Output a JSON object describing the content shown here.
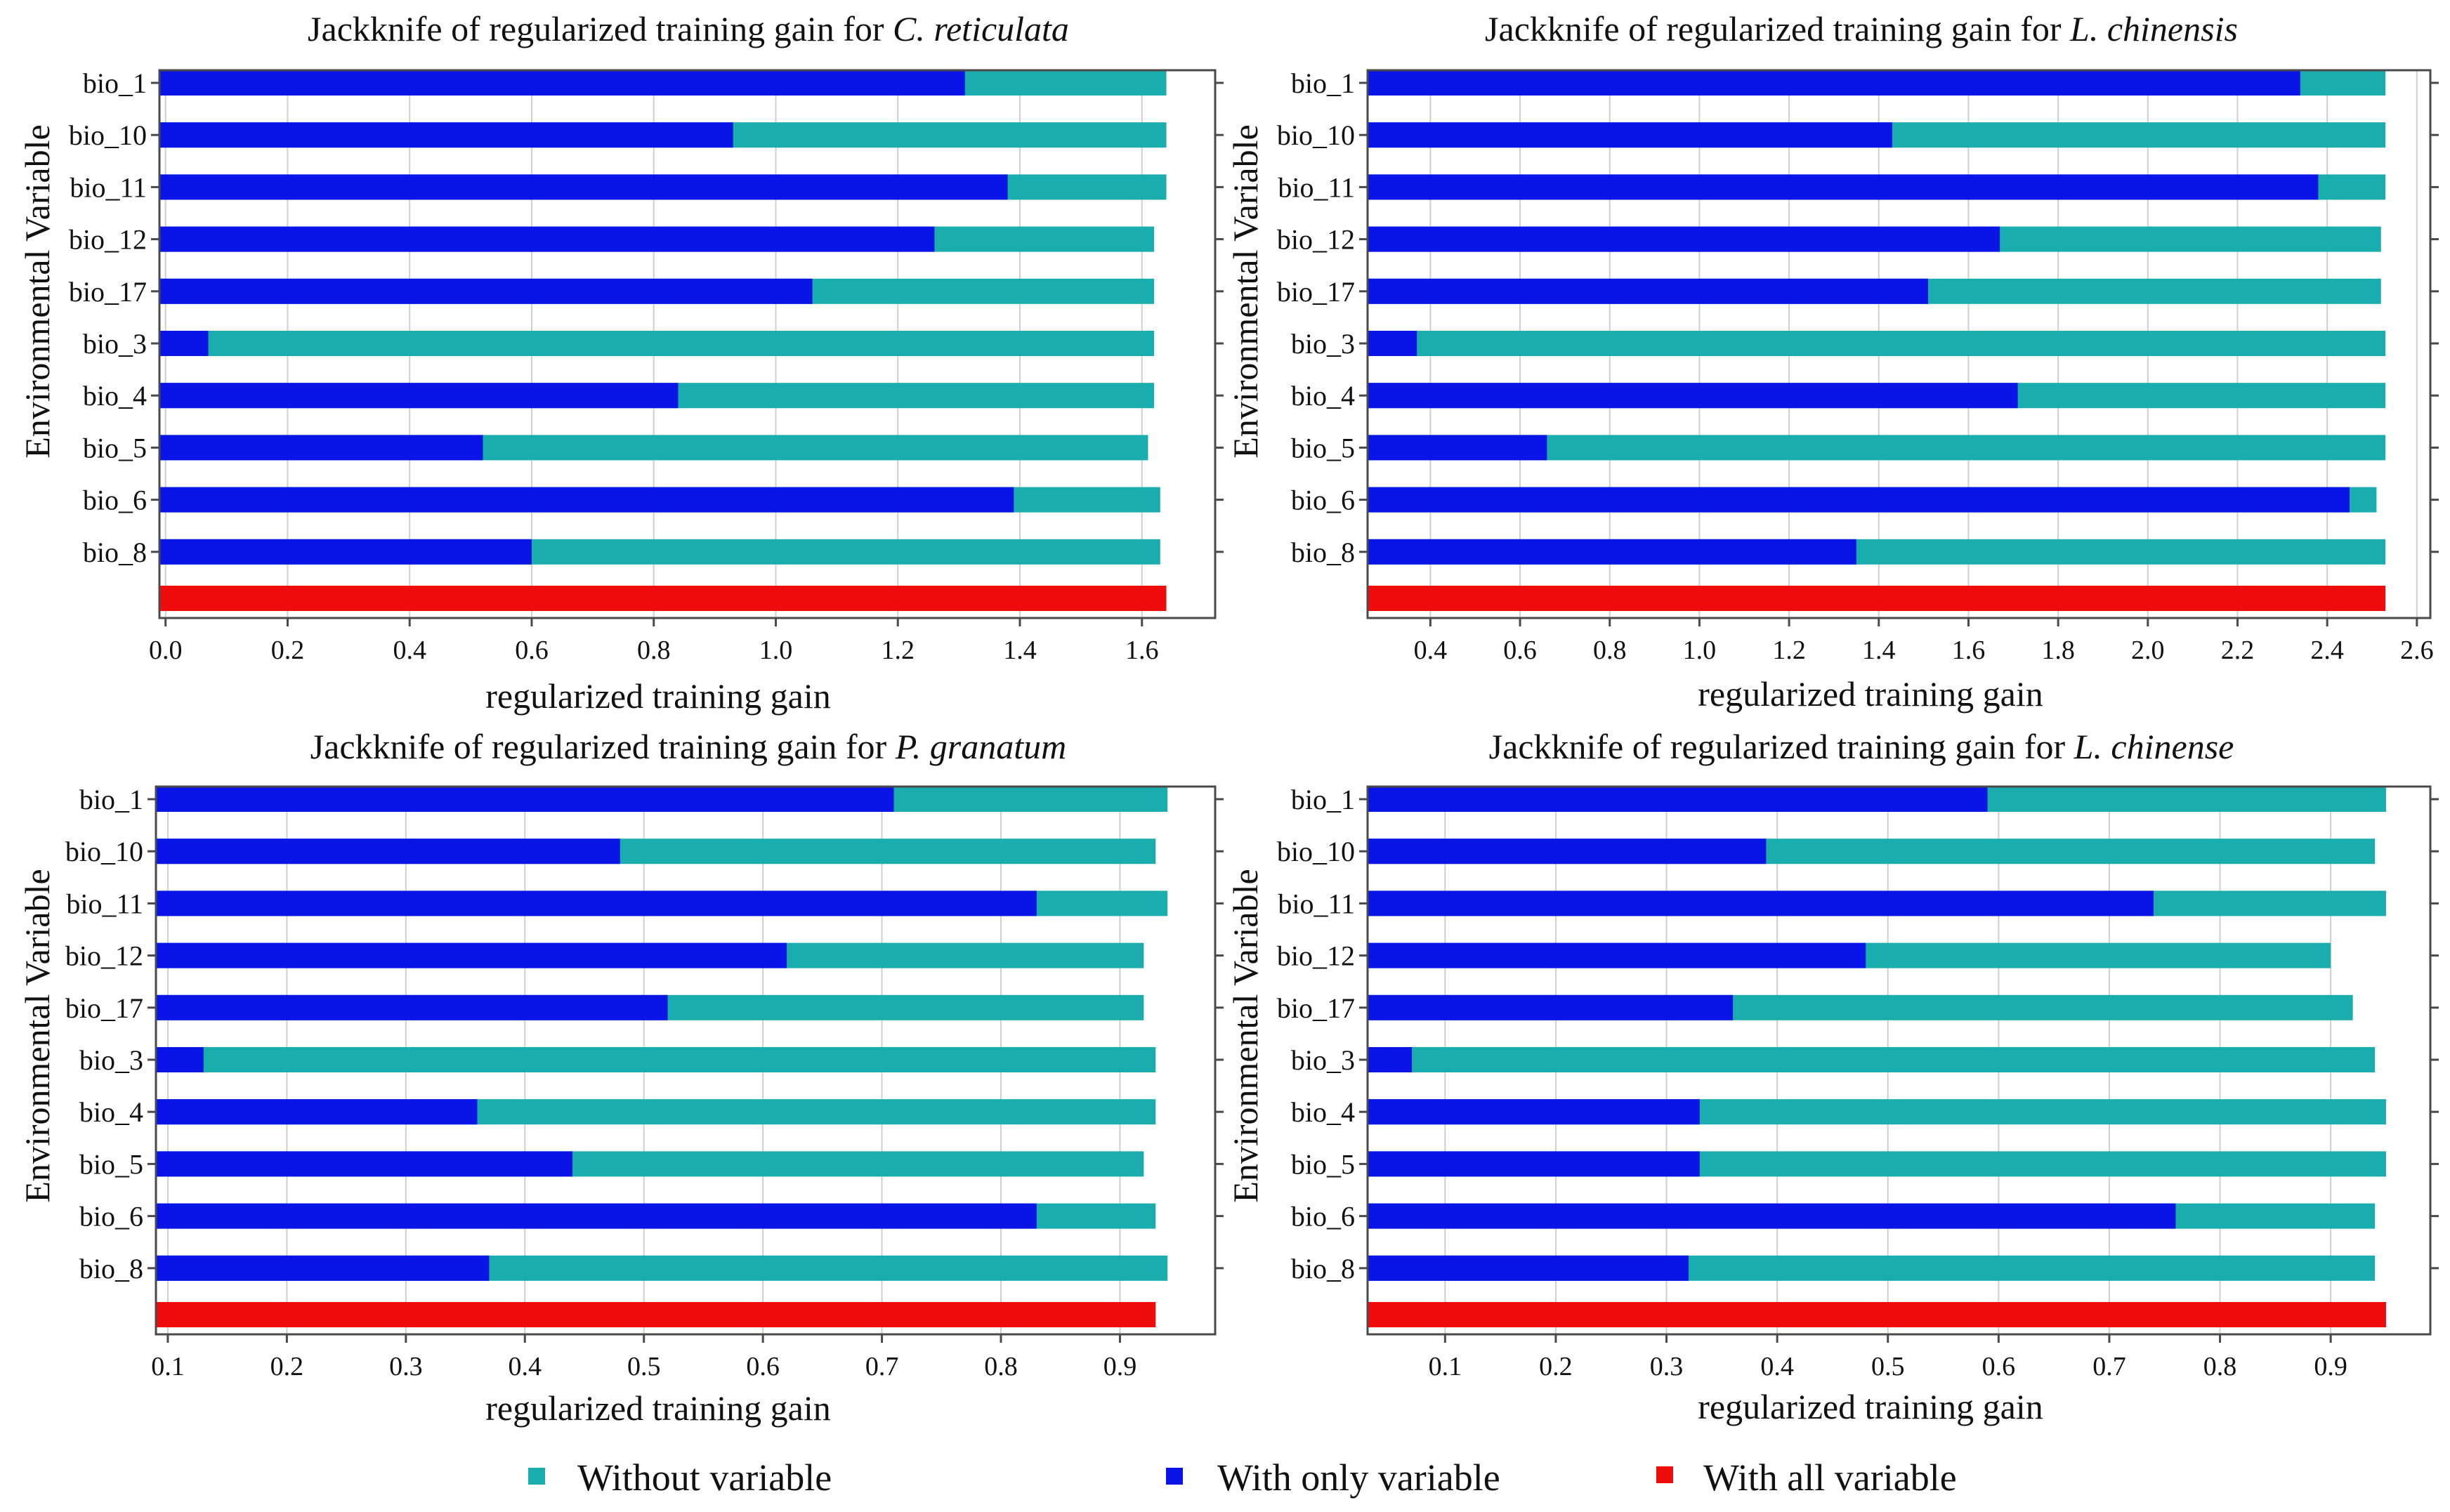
{
  "chart_data": [
    {
      "type": "bar",
      "orientation": "horizontal",
      "title": "Jackknife of regularized training gain for",
      "species": "C. reticulata",
      "xlabel": "regularized training gain",
      "ylabel": "Environmental Variable",
      "xlim": [
        -0.01,
        1.72
      ],
      "xticks": [
        0.0,
        0.2,
        0.4,
        0.6,
        0.8,
        1.0,
        1.2,
        1.4,
        1.6
      ],
      "xtick_labels": [
        "0.0",
        "0.2",
        "0.4",
        "0.6",
        "0.8",
        "1.0",
        "1.2",
        "1.4",
        "1.6"
      ],
      "grid": true,
      "categories": [
        "bio_1",
        "bio_10",
        "bio_11",
        "bio_12",
        "bio_17",
        "bio_3",
        "bio_4",
        "bio_5",
        "bio_6",
        "bio_8"
      ],
      "series": [
        {
          "name": "Without variable",
          "values": [
            1.64,
            1.64,
            1.64,
            1.62,
            1.62,
            1.62,
            1.62,
            1.61,
            1.63,
            1.63
          ]
        },
        {
          "name": "With only variable",
          "values": [
            1.31,
            0.93,
            1.38,
            1.26,
            1.06,
            0.07,
            0.84,
            0.52,
            1.39,
            0.6
          ]
        }
      ],
      "all_variables": 1.64
    },
    {
      "type": "bar",
      "orientation": "horizontal",
      "title": "Jackknife of regularized training gain for",
      "species": "L. chinensis",
      "xlabel": "regularized training gain",
      "ylabel": "Environmental Variable",
      "xlim": [
        0.26,
        2.63
      ],
      "xticks": [
        0.4,
        0.6,
        0.8,
        1.0,
        1.2,
        1.4,
        1.6,
        1.8,
        2.0,
        2.2,
        2.4,
        2.6
      ],
      "xtick_labels": [
        "0.4",
        "0.6",
        "0.8",
        "1.0",
        "1.2",
        "1.4",
        "1.6",
        "1.8",
        "2.0",
        "2.2",
        "2.4",
        "2.6"
      ],
      "grid": true,
      "categories": [
        "bio_1",
        "bio_10",
        "bio_11",
        "bio_12",
        "bio_17",
        "bio_3",
        "bio_4",
        "bio_5",
        "bio_6",
        "bio_8"
      ],
      "series": [
        {
          "name": "Without variable",
          "values": [
            2.53,
            2.53,
            2.53,
            2.52,
            2.52,
            2.53,
            2.53,
            2.53,
            2.51,
            2.53
          ]
        },
        {
          "name": "With only variable",
          "values": [
            2.34,
            1.43,
            2.38,
            1.67,
            1.51,
            0.37,
            1.71,
            0.66,
            2.45,
            1.35
          ]
        }
      ],
      "all_variables": 2.53
    },
    {
      "type": "bar",
      "orientation": "horizontal",
      "title": "Jackknife of regularized training gain for",
      "species": "P. granatum",
      "xlabel": "regularized training gain",
      "ylabel": "Environmental Variable",
      "xlim": [
        0.09,
        0.98
      ],
      "xticks": [
        0.1,
        0.2,
        0.3,
        0.4,
        0.5,
        0.6,
        0.7,
        0.8,
        0.9
      ],
      "xtick_labels": [
        "0.1",
        "0.2",
        "0.3",
        "0.4",
        "0.5",
        "0.6",
        "0.7",
        "0.8",
        "0.9"
      ],
      "grid": true,
      "categories": [
        "bio_1",
        "bio_10",
        "bio_11",
        "bio_12",
        "bio_17",
        "bio_3",
        "bio_4",
        "bio_5",
        "bio_6",
        "bio_8"
      ],
      "series": [
        {
          "name": "Without variable",
          "values": [
            0.94,
            0.93,
            0.94,
            0.92,
            0.92,
            0.93,
            0.93,
            0.92,
            0.93,
            0.94
          ]
        },
        {
          "name": "With only variable",
          "values": [
            0.71,
            0.48,
            0.83,
            0.62,
            0.52,
            0.13,
            0.36,
            0.44,
            0.83,
            0.37
          ]
        }
      ],
      "all_variables": 0.93
    },
    {
      "type": "bar",
      "orientation": "horizontal",
      "title": "Jackknife of regularized training gain for",
      "species": "L. chinense",
      "xlabel": "regularized training gain",
      "ylabel": "Environmental Variable",
      "xlim": [
        0.03,
        0.99
      ],
      "xticks": [
        0.1,
        0.2,
        0.3,
        0.4,
        0.5,
        0.6,
        0.7,
        0.8,
        0.9
      ],
      "xtick_labels": [
        "0.1",
        "0.2",
        "0.3",
        "0.4",
        "0.5",
        "0.6",
        "0.7",
        "0.8",
        "0.9"
      ],
      "grid": true,
      "categories": [
        "bio_1",
        "bio_10",
        "bio_11",
        "bio_12",
        "bio_17",
        "bio_3",
        "bio_4",
        "bio_5",
        "bio_6",
        "bio_8"
      ],
      "series": [
        {
          "name": "Without variable",
          "values": [
            0.95,
            0.94,
            0.95,
            0.9,
            0.92,
            0.94,
            0.95,
            0.95,
            0.94,
            0.94
          ]
        },
        {
          "name": "With only variable",
          "values": [
            0.59,
            0.39,
            0.74,
            0.48,
            0.36,
            0.07,
            0.33,
            0.33,
            0.76,
            0.32
          ]
        }
      ],
      "all_variables": 0.95
    }
  ],
  "legend": {
    "placement": "bottom",
    "items": [
      {
        "label": "Without variable",
        "color": "#1aadad"
      },
      {
        "label": "With only variable",
        "color": "#0a14e6"
      },
      {
        "label": "With all variable",
        "color": "#ee0c0c"
      }
    ]
  },
  "colors": {
    "without": "#1aadad",
    "only": "#0a14e6",
    "all": "#ee0c0c",
    "grid": "#cfcfcf",
    "axis": "#4a4a4a"
  }
}
